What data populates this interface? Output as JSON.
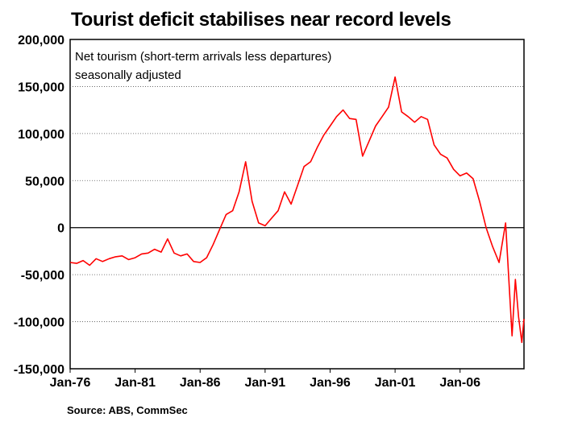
{
  "title": "Tourist deficit stabilises near record levels",
  "source": "Source: ABS, CommSec",
  "chart_data": {
    "type": "line",
    "legend": [
      "Net tourism (short-term arrivals less departures)",
      "seasonally adjusted"
    ],
    "ylim": [
      -150000,
      200000
    ],
    "yticks": [
      200000,
      150000,
      100000,
      50000,
      0,
      -50000,
      -100000,
      -150000
    ],
    "ytick_labels": [
      "200,000",
      "150,000",
      "100,000",
      "50,000",
      "0",
      "-50,000",
      "-100,000",
      "-150,000"
    ],
    "xticks": [
      "Jan-76",
      "Jan-81",
      "Jan-86",
      "Jan-91",
      "Jan-96",
      "Jan-01",
      "Jan-06"
    ],
    "x_start": "Jan-76",
    "x_end": "Dec-10",
    "gridlines": "horizontal dotted",
    "series": [
      {
        "color": "#ff0000",
        "points": [
          [
            "Jan-76",
            -37000
          ],
          [
            "Jul-76",
            -38000
          ],
          [
            "Jan-77",
            -35000
          ],
          [
            "Jul-77",
            -40000
          ],
          [
            "Jan-78",
            -33000
          ],
          [
            "Jul-78",
            -36000
          ],
          [
            "Jan-79",
            -33000
          ],
          [
            "Jul-79",
            -31000
          ],
          [
            "Jan-80",
            -30000
          ],
          [
            "Jul-80",
            -34000
          ],
          [
            "Jan-81",
            -32000
          ],
          [
            "Jul-81",
            -28000
          ],
          [
            "Jan-82",
            -27000
          ],
          [
            "Jul-82",
            -23000
          ],
          [
            "Jan-83",
            -26000
          ],
          [
            "Jul-83",
            -12000
          ],
          [
            "Jan-84",
            -27000
          ],
          [
            "Jul-84",
            -30000
          ],
          [
            "Jan-85",
            -28000
          ],
          [
            "Jul-85",
            -36000
          ],
          [
            "Jan-86",
            -37000
          ],
          [
            "Jul-86",
            -32000
          ],
          [
            "Jan-87",
            -18000
          ],
          [
            "Jul-87",
            -2000
          ],
          [
            "Jan-88",
            14000
          ],
          [
            "Jul-88",
            18000
          ],
          [
            "Jan-89",
            38000
          ],
          [
            "Jul-89",
            70000
          ],
          [
            "Jan-90",
            28000
          ],
          [
            "Jul-90",
            5000
          ],
          [
            "Jan-91",
            2000
          ],
          [
            "Jul-91",
            10000
          ],
          [
            "Jan-92",
            18000
          ],
          [
            "Jul-92",
            38000
          ],
          [
            "Jan-93",
            25000
          ],
          [
            "Jul-93",
            45000
          ],
          [
            "Jan-94",
            65000
          ],
          [
            "Jul-94",
            70000
          ],
          [
            "Jan-95",
            85000
          ],
          [
            "Jul-95",
            98000
          ],
          [
            "Jan-96",
            108000
          ],
          [
            "Jul-96",
            118000
          ],
          [
            "Jan-97",
            125000
          ],
          [
            "Jul-97",
            116000
          ],
          [
            "Jan-98",
            115000
          ],
          [
            "Jul-98",
            76000
          ],
          [
            "Jan-99",
            92000
          ],
          [
            "Jul-99",
            108000
          ],
          [
            "Jan-00",
            118000
          ],
          [
            "Jul-00",
            128000
          ],
          [
            "Jan-01",
            160000
          ],
          [
            "Jul-01",
            123000
          ],
          [
            "Jan-02",
            118000
          ],
          [
            "Jul-02",
            112000
          ],
          [
            "Jan-03",
            118000
          ],
          [
            "Jul-03",
            115000
          ],
          [
            "Jan-04",
            88000
          ],
          [
            "Jul-04",
            78000
          ],
          [
            "Jan-05",
            74000
          ],
          [
            "Jul-05",
            62000
          ],
          [
            "Jan-06",
            55000
          ],
          [
            "Jul-06",
            58000
          ],
          [
            "Jan-07",
            52000
          ],
          [
            "Jul-07",
            28000
          ],
          [
            "Jan-08",
            0
          ],
          [
            "Jul-08",
            -20000
          ],
          [
            "Jan-09",
            -37000
          ],
          [
            "Jul-09",
            5000
          ],
          [
            "Jan-10",
            -115000
          ],
          [
            "Apr-10",
            -55000
          ],
          [
            "Jul-10",
            -95000
          ],
          [
            "Oct-10",
            -122000
          ],
          [
            "Dec-10",
            -97000
          ]
        ]
      }
    ]
  }
}
